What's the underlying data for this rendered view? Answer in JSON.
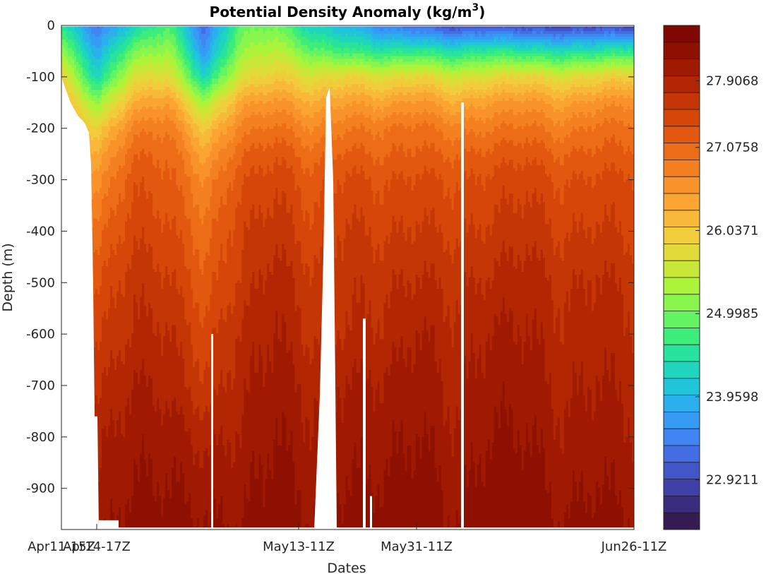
{
  "chart_data": {
    "type": "heatmap",
    "title": "Potential Density Anomaly (kg/m",
    "title_superscript": "3",
    "title_suffix": ")",
    "xlabel": "Dates",
    "ylabel": "Depth  (m)",
    "x_ticks": [
      "Apr11-15Z",
      "Apr14-17Z",
      "May13-11Z",
      "May31-11Z",
      "Jun26-11Z"
    ],
    "y_ticks": [
      0,
      -100,
      -200,
      -300,
      -400,
      -500,
      -600,
      -700,
      -800,
      -900
    ],
    "ylim": [
      -980,
      0
    ],
    "colorbar_ticks": [
      "22.9211",
      "23.9598",
      "24.9985",
      "26.0371",
      "27.0758",
      "27.9068"
    ],
    "colormap": "turbo",
    "grid": false,
    "series": [
      {
        "depth": 0,
        "values": [
          24.5,
          23.3,
          24.2,
          24.8,
          23.2,
          24.9,
          25.0,
          24.2,
          23.9,
          23.4,
          23.2,
          22.9,
          23.0,
          22.9,
          22.8,
          22.9,
          22.8
        ]
      },
      {
        "depth": -50,
        "values": [
          25.2,
          23.8,
          25.0,
          25.3,
          23.6,
          25.2,
          25.5,
          24.9,
          24.7,
          24.5,
          24.6,
          24.4,
          24.6,
          24.5,
          24.4,
          24.5,
          24.6
        ]
      },
      {
        "depth": -100,
        "values": [
          25.9,
          24.3,
          25.7,
          25.8,
          24.3,
          25.7,
          26.0,
          25.7,
          25.9,
          25.7,
          25.9,
          25.6,
          25.8,
          25.9,
          25.7,
          25.9,
          26.0
        ]
      },
      {
        "depth": -150,
        "values": [
          26.3,
          25.2,
          26.3,
          26.5,
          25.3,
          26.4,
          26.6,
          26.3,
          26.5,
          26.4,
          26.6,
          26.3,
          26.5,
          26.6,
          26.4,
          26.6,
          26.7
        ]
      },
      {
        "depth": -200,
        "values": [
          26.6,
          25.9,
          26.8,
          26.9,
          26.0,
          26.8,
          27.0,
          26.7,
          26.9,
          26.9,
          27.0,
          26.8,
          26.9,
          27.0,
          26.8,
          27.0,
          27.0
        ]
      },
      {
        "depth": -250,
        "values": [
          26.8,
          26.3,
          27.1,
          27.1,
          26.4,
          27.1,
          27.3,
          27.0,
          27.2,
          27.1,
          27.2,
          27.1,
          27.2,
          27.3,
          27.1,
          27.2,
          27.2
        ]
      },
      {
        "depth": -300,
        "values": [
          27.0,
          26.6,
          27.3,
          27.2,
          26.7,
          27.3,
          27.5,
          27.2,
          27.4,
          27.3,
          27.4,
          27.3,
          27.4,
          27.5,
          27.3,
          27.4,
          27.4
        ]
      },
      {
        "depth": -400,
        "values": [
          27.3,
          27.0,
          27.5,
          27.4,
          27.0,
          27.5,
          27.7,
          27.4,
          27.6,
          27.5,
          27.6,
          27.5,
          27.6,
          27.7,
          27.5,
          27.6,
          27.5
        ]
      },
      {
        "depth": -500,
        "values": [
          27.5,
          27.3,
          27.7,
          27.6,
          27.2,
          27.6,
          27.9,
          27.6,
          27.7,
          27.7,
          27.8,
          27.7,
          27.8,
          27.9,
          27.7,
          27.8,
          27.7
        ]
      },
      {
        "depth": -600,
        "values": [
          27.7,
          27.5,
          27.8,
          27.8,
          27.4,
          27.8,
          28.0,
          27.7,
          27.8,
          27.8,
          28.0,
          27.8,
          28.0,
          28.0,
          27.8,
          27.9,
          27.8
        ]
      },
      {
        "depth": -700,
        "values": [
          27.8,
          27.7,
          28.0,
          27.9,
          27.6,
          27.9,
          28.1,
          27.9,
          28.0,
          28.0,
          28.1,
          27.9,
          28.1,
          28.1,
          27.9,
          28.0,
          27.9
        ]
      },
      {
        "depth": -800,
        "values": [
          27.9,
          27.9,
          28.1,
          28.1,
          27.9,
          28.0,
          28.2,
          28.0,
          28.1,
          28.1,
          28.2,
          28.0,
          28.2,
          28.2,
          28.0,
          28.1,
          28.0
        ]
      },
      {
        "depth": -900,
        "values": [
          28.0,
          28.0,
          28.2,
          28.2,
          28.1,
          28.1,
          28.3,
          28.1,
          28.2,
          28.2,
          28.3,
          28.1,
          28.3,
          28.3,
          28.1,
          28.2,
          28.1
        ]
      },
      {
        "depth": -980,
        "values": [
          28.1,
          28.1,
          28.3,
          28.3,
          28.2,
          28.2,
          28.3,
          28.2,
          28.3,
          28.3,
          28.3,
          28.2,
          28.3,
          28.3,
          28.2,
          28.3,
          28.2
        ]
      }
    ]
  }
}
